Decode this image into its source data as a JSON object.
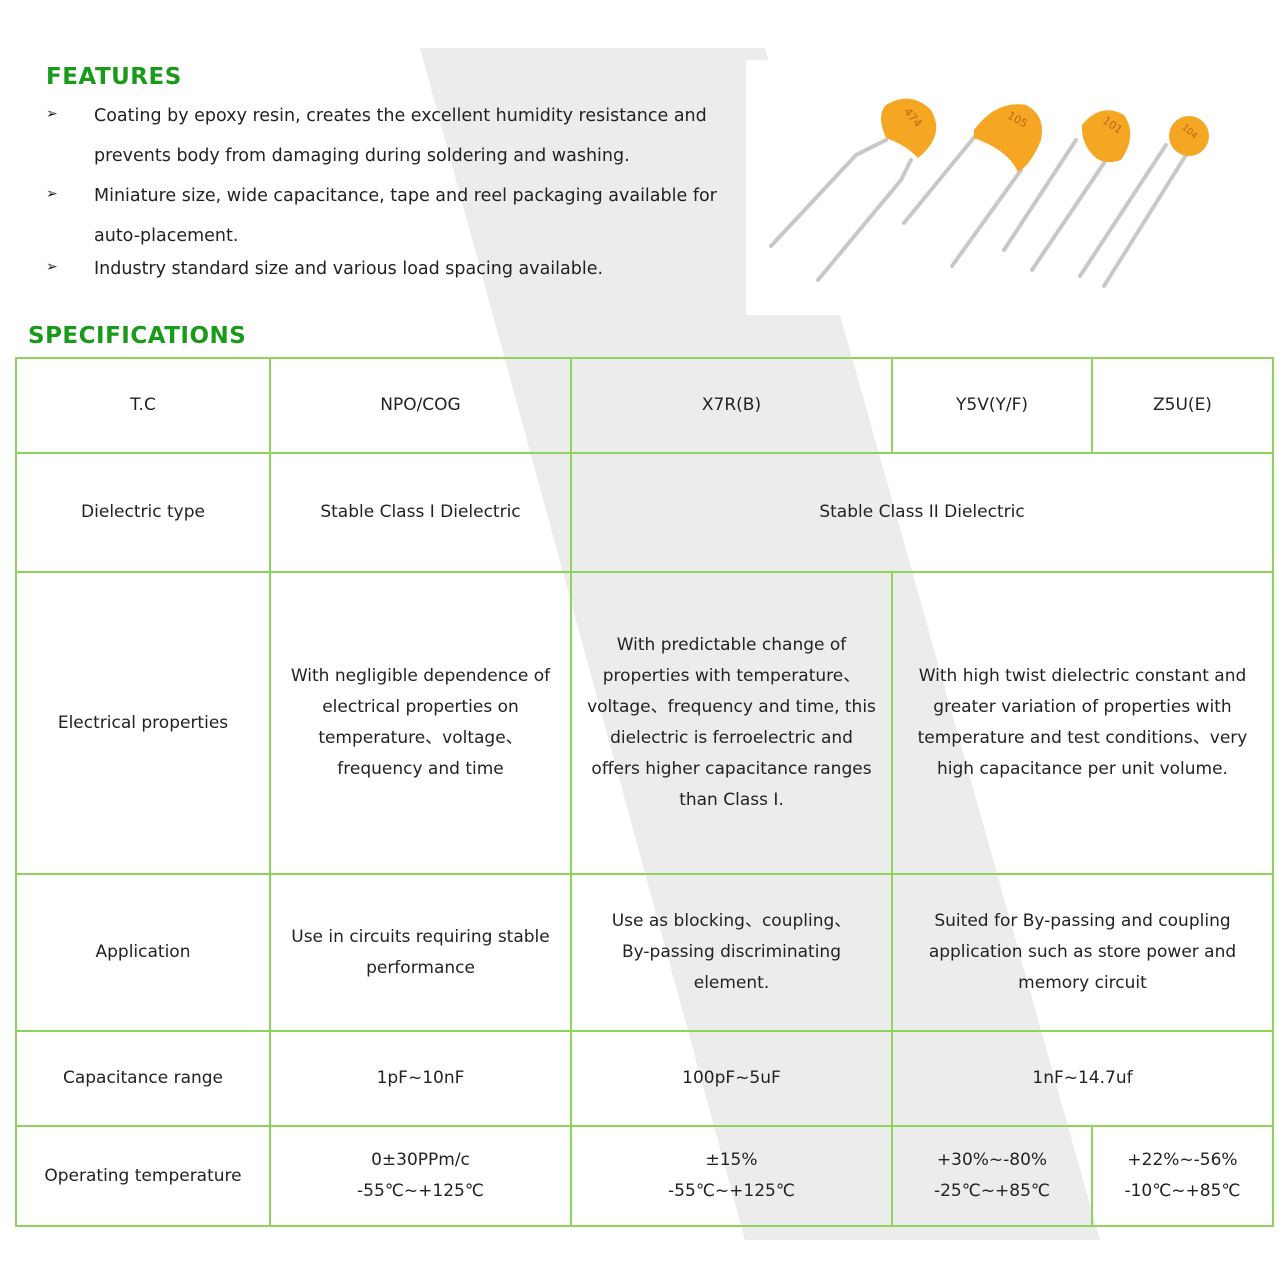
{
  "features": {
    "title": "FEATURES",
    "bullet_icon": "arrowhead-bullet",
    "items": [
      {
        "line1": "Coating by epoxy resin, creates the excellent humidity resistance and",
        "line2": "prevents body from damaging during soldering and washing."
      },
      {
        "line1": "Miniature size, wide capacitance, tape and reel packaging available for",
        "line2": "auto-placement."
      },
      {
        "line1": "Industry standard size and various load spacing available."
      }
    ]
  },
  "photo": {
    "capacitor_codes": [
      "474",
      "105",
      "101",
      "104"
    ],
    "body_color": "#f5a623"
  },
  "specifications": {
    "title": "SPECIFICATIONS",
    "header": [
      "T.C",
      "NPO/COG",
      "X7R(B)",
      "Y5V(Y/F)",
      "Z5U(E)"
    ],
    "dielectric": {
      "label": "Dielectric type",
      "class1": "Stable Class I Dielectric",
      "class2": "Stable Class II Dielectric"
    },
    "electrical": {
      "label": "Electrical properties",
      "npo": [
        "With negligible dependence of",
        "electrical properties on",
        "temperature、voltage、",
        "frequency and time"
      ],
      "x7r": [
        "With predictable change of",
        "properties with temperature、",
        "voltage、frequency and time, this",
        "dielectric is ferroelectric and",
        "offers higher capacitance ranges",
        "than Class I."
      ],
      "y5v": [
        "With high twist dielectric constant and",
        "greater variation of properties with",
        "temperature and test conditions、very",
        "high capacitance per unit volume."
      ]
    },
    "application": {
      "label": "Application",
      "npo": [
        "Use in circuits requiring stable",
        "performance"
      ],
      "x7r": [
        "Use as blocking、coupling、",
        "By-passing discriminating",
        "element."
      ],
      "y5v": [
        "Suited for By-passing and coupling",
        "application such as store power and",
        "memory circuit"
      ]
    },
    "capacitance": {
      "label": "Capacitance range",
      "npo": "1pF~10nF",
      "x7r": "100pF~5uF",
      "y5v": "1nF~14.7uf"
    },
    "temperature": {
      "label": "Operating temperature",
      "npo": [
        "0±30PPm/c",
        "-55℃~+125℃"
      ],
      "x7r": [
        "±15%",
        "-55℃~+125℃"
      ],
      "y5v": [
        "+30%~-80%",
        "-25℃~+85℃"
      ],
      "z5u": [
        "+22%~-56%",
        "-10℃~+85℃"
      ]
    }
  },
  "colors": {
    "heading_green": "#1a9a1a",
    "border_green": "#8fd45a",
    "band_gray": "#ececec"
  }
}
